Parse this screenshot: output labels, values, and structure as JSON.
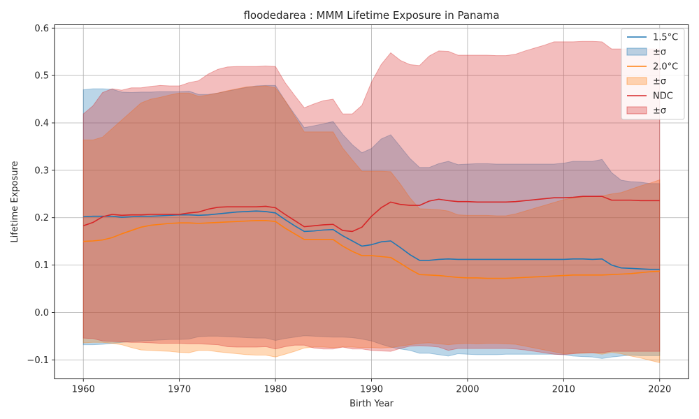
{
  "chart_data": {
    "type": "line",
    "title": "floodedarea : MMM Lifetime Exposure in Panama",
    "xlabel": "Birth Year",
    "ylabel": "Lifetime Exposure",
    "xlim": [
      1957,
      2023
    ],
    "ylim": [
      -0.14,
      0.607
    ],
    "grid": true,
    "legend_position": "top-right",
    "x": [
      1960,
      1961,
      1962,
      1963,
      1964,
      1965,
      1966,
      1967,
      1968,
      1969,
      1970,
      1971,
      1972,
      1973,
      1974,
      1975,
      1976,
      1977,
      1978,
      1979,
      1980,
      1981,
      1982,
      1983,
      1984,
      1985,
      1986,
      1987,
      1988,
      1989,
      1990,
      1991,
      1992,
      1993,
      1994,
      1995,
      1996,
      1997,
      1998,
      1999,
      2000,
      2001,
      2002,
      2003,
      2004,
      2005,
      2006,
      2007,
      2008,
      2009,
      2010,
      2011,
      2012,
      2013,
      2014,
      2015,
      2016,
      2017,
      2018,
      2019,
      2020
    ],
    "series": [
      {
        "name": "1.5°C",
        "band_name": "±σ",
        "color": "#1f77b4",
        "band_color": "#1f77b4",
        "values": [
          0.202,
          0.203,
          0.203,
          0.203,
          0.201,
          0.202,
          0.203,
          0.203,
          0.204,
          0.205,
          0.206,
          0.206,
          0.205,
          0.206,
          0.208,
          0.21,
          0.212,
          0.213,
          0.214,
          0.213,
          0.21,
          0.196,
          0.183,
          0.171,
          0.172,
          0.174,
          0.175,
          0.162,
          0.151,
          0.14,
          0.143,
          0.149,
          0.151,
          0.137,
          0.122,
          0.11,
          0.11,
          0.112,
          0.113,
          0.112,
          0.112,
          0.112,
          0.112,
          0.112,
          0.112,
          0.112,
          0.112,
          0.112,
          0.112,
          0.112,
          0.112,
          0.113,
          0.113,
          0.112,
          0.113,
          0.1,
          0.094,
          0.093,
          0.092,
          0.091,
          0.091
        ],
        "upper": [
          0.47,
          0.472,
          0.472,
          0.471,
          0.465,
          0.464,
          0.465,
          0.465,
          0.466,
          0.466,
          0.466,
          0.467,
          0.46,
          0.46,
          0.463,
          0.467,
          0.471,
          0.475,
          0.478,
          0.479,
          0.479,
          0.447,
          0.418,
          0.39,
          0.394,
          0.398,
          0.403,
          0.376,
          0.354,
          0.337,
          0.346,
          0.366,
          0.375,
          0.35,
          0.325,
          0.306,
          0.306,
          0.314,
          0.319,
          0.312,
          0.313,
          0.314,
          0.314,
          0.313,
          0.313,
          0.313,
          0.313,
          0.313,
          0.313,
          0.313,
          0.315,
          0.319,
          0.319,
          0.319,
          0.323,
          0.295,
          0.279,
          0.276,
          0.275,
          0.272,
          0.272
        ],
        "lower": [
          -0.068,
          -0.068,
          -0.067,
          -0.065,
          -0.063,
          -0.061,
          -0.06,
          -0.059,
          -0.058,
          -0.057,
          -0.057,
          -0.056,
          -0.051,
          -0.05,
          -0.05,
          -0.051,
          -0.052,
          -0.053,
          -0.054,
          -0.054,
          -0.059,
          -0.055,
          -0.052,
          -0.049,
          -0.05,
          -0.051,
          -0.052,
          -0.052,
          -0.053,
          -0.056,
          -0.06,
          -0.067,
          -0.073,
          -0.077,
          -0.08,
          -0.086,
          -0.086,
          -0.089,
          -0.092,
          -0.087,
          -0.088,
          -0.089,
          -0.089,
          -0.089,
          -0.088,
          -0.088,
          -0.088,
          -0.088,
          -0.088,
          -0.088,
          -0.089,
          -0.092,
          -0.093,
          -0.094,
          -0.097,
          -0.094,
          -0.092,
          -0.09,
          -0.091,
          -0.091,
          -0.091
        ]
      },
      {
        "name": "2.0°C",
        "band_name": "±σ",
        "color": "#ff7f0e",
        "band_color": "#ff7f0e",
        "values": [
          0.15,
          0.151,
          0.153,
          0.158,
          0.166,
          0.173,
          0.18,
          0.184,
          0.186,
          0.188,
          0.189,
          0.189,
          0.188,
          0.189,
          0.19,
          0.191,
          0.192,
          0.193,
          0.194,
          0.194,
          0.192,
          0.178,
          0.166,
          0.154,
          0.154,
          0.154,
          0.154,
          0.14,
          0.129,
          0.12,
          0.12,
          0.118,
          0.116,
          0.104,
          0.091,
          0.08,
          0.079,
          0.078,
          0.076,
          0.074,
          0.073,
          0.073,
          0.072,
          0.072,
          0.072,
          0.073,
          0.074,
          0.075,
          0.076,
          0.077,
          0.078,
          0.079,
          0.079,
          0.079,
          0.079,
          0.08,
          0.081,
          0.082,
          0.084,
          0.086,
          0.087
        ],
        "upper": [
          0.364,
          0.364,
          0.37,
          0.388,
          0.406,
          0.424,
          0.442,
          0.45,
          0.454,
          0.459,
          0.463,
          0.463,
          0.456,
          0.459,
          0.463,
          0.468,
          0.472,
          0.476,
          0.477,
          0.478,
          0.474,
          0.447,
          0.414,
          0.381,
          0.381,
          0.381,
          0.381,
          0.347,
          0.322,
          0.298,
          0.298,
          0.298,
          0.297,
          0.271,
          0.242,
          0.219,
          0.218,
          0.217,
          0.214,
          0.206,
          0.205,
          0.205,
          0.205,
          0.204,
          0.204,
          0.208,
          0.214,
          0.22,
          0.226,
          0.232,
          0.238,
          0.242,
          0.244,
          0.245,
          0.246,
          0.25,
          0.253,
          0.26,
          0.267,
          0.273,
          0.28
        ],
        "lower": [
          -0.064,
          -0.063,
          -0.063,
          -0.065,
          -0.068,
          -0.074,
          -0.079,
          -0.08,
          -0.081,
          -0.082,
          -0.084,
          -0.085,
          -0.08,
          -0.08,
          -0.083,
          -0.085,
          -0.087,
          -0.089,
          -0.09,
          -0.09,
          -0.094,
          -0.088,
          -0.082,
          -0.075,
          -0.073,
          -0.073,
          -0.074,
          -0.073,
          -0.073,
          -0.074,
          -0.074,
          -0.075,
          -0.074,
          -0.071,
          -0.068,
          -0.065,
          -0.064,
          -0.066,
          -0.068,
          -0.066,
          -0.065,
          -0.066,
          -0.065,
          -0.065,
          -0.066,
          -0.067,
          -0.071,
          -0.075,
          -0.079,
          -0.083,
          -0.087,
          -0.086,
          -0.086,
          -0.085,
          -0.088,
          -0.084,
          -0.087,
          -0.092,
          -0.096,
          -0.101,
          -0.106
        ]
      },
      {
        "name": "NDC",
        "band_name": "±σ",
        "color": "#d62728",
        "band_color": "#d62728",
        "values": [
          0.183,
          0.19,
          0.202,
          0.207,
          0.205,
          0.206,
          0.206,
          0.207,
          0.207,
          0.207,
          0.207,
          0.21,
          0.212,
          0.218,
          0.222,
          0.223,
          0.223,
          0.223,
          0.223,
          0.224,
          0.221,
          0.207,
          0.194,
          0.181,
          0.183,
          0.185,
          0.186,
          0.173,
          0.171,
          0.18,
          0.203,
          0.221,
          0.233,
          0.228,
          0.226,
          0.226,
          0.235,
          0.239,
          0.236,
          0.234,
          0.234,
          0.233,
          0.233,
          0.233,
          0.233,
          0.234,
          0.236,
          0.238,
          0.24,
          0.242,
          0.242,
          0.243,
          0.245,
          0.245,
          0.245,
          0.237,
          0.237,
          0.237,
          0.236,
          0.236,
          0.236
        ],
        "upper": [
          0.419,
          0.436,
          0.464,
          0.472,
          0.469,
          0.474,
          0.474,
          0.477,
          0.479,
          0.478,
          0.478,
          0.485,
          0.489,
          0.503,
          0.513,
          0.518,
          0.519,
          0.519,
          0.519,
          0.52,
          0.519,
          0.485,
          0.458,
          0.432,
          0.44,
          0.447,
          0.45,
          0.419,
          0.419,
          0.437,
          0.486,
          0.523,
          0.548,
          0.532,
          0.523,
          0.521,
          0.541,
          0.552,
          0.551,
          0.543,
          0.543,
          0.543,
          0.543,
          0.542,
          0.542,
          0.545,
          0.552,
          0.558,
          0.564,
          0.571,
          0.571,
          0.571,
          0.572,
          0.572,
          0.571,
          0.556,
          0.556,
          0.556,
          0.556,
          0.556,
          0.556
        ],
        "lower": [
          -0.054,
          -0.055,
          -0.06,
          -0.061,
          -0.062,
          -0.063,
          -0.063,
          -0.064,
          -0.065,
          -0.065,
          -0.065,
          -0.066,
          -0.066,
          -0.067,
          -0.068,
          -0.072,
          -0.073,
          -0.073,
          -0.073,
          -0.072,
          -0.077,
          -0.072,
          -0.069,
          -0.069,
          -0.075,
          -0.077,
          -0.077,
          -0.073,
          -0.077,
          -0.077,
          -0.08,
          -0.081,
          -0.082,
          -0.076,
          -0.071,
          -0.07,
          -0.071,
          -0.073,
          -0.08,
          -0.076,
          -0.076,
          -0.076,
          -0.076,
          -0.076,
          -0.076,
          -0.077,
          -0.079,
          -0.082,
          -0.085,
          -0.088,
          -0.089,
          -0.087,
          -0.085,
          -0.085,
          -0.085,
          -0.082,
          -0.082,
          -0.082,
          -0.082,
          -0.082,
          -0.082
        ]
      }
    ],
    "x_ticks": [
      "1960",
      "1970",
      "1980",
      "1990",
      "2000",
      "2010",
      "2020"
    ],
    "y_ticks": [
      "−0.1",
      "0.0",
      "0.1",
      "0.2",
      "0.3",
      "0.4",
      "0.5",
      "0.6"
    ]
  }
}
